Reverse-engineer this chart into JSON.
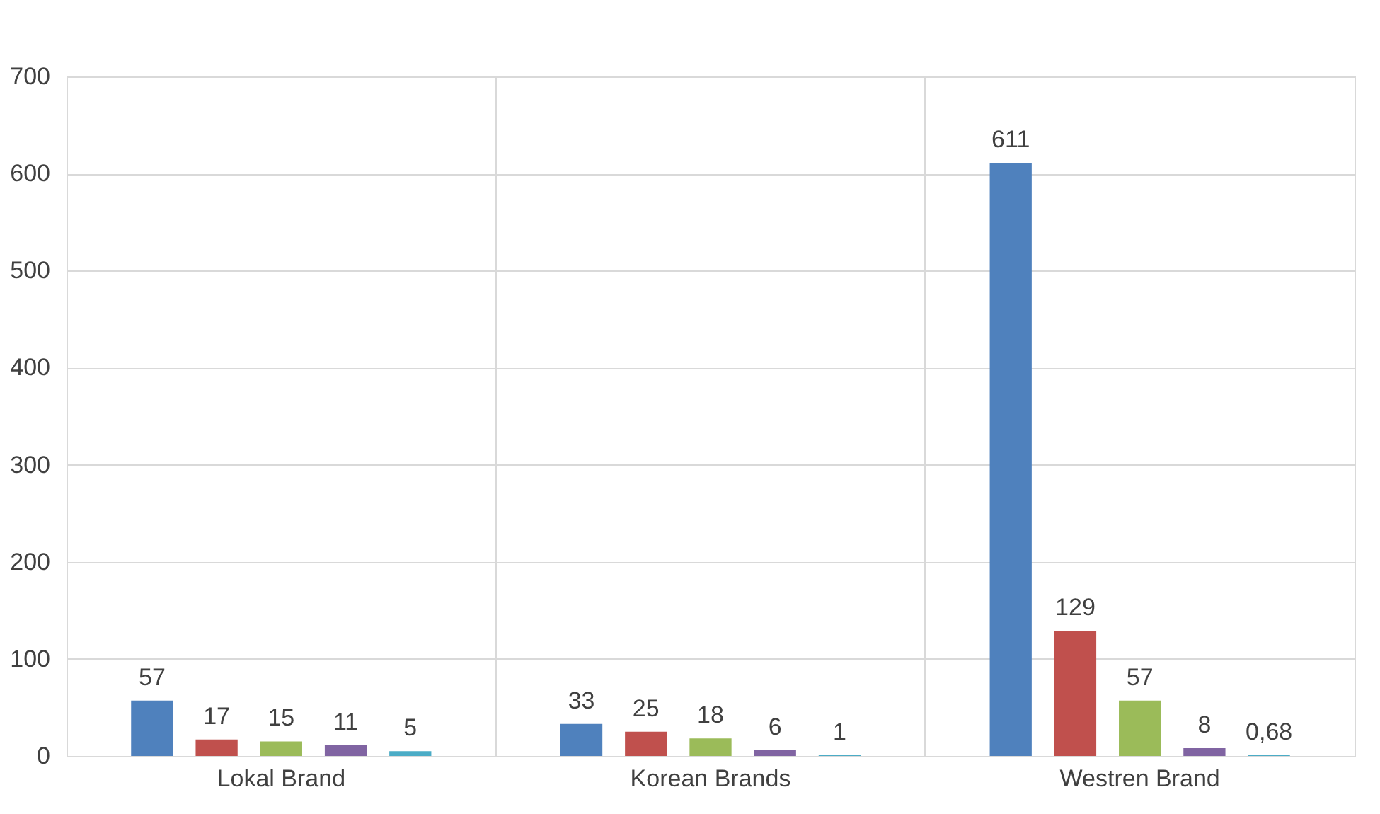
{
  "chart_data": {
    "type": "bar",
    "categories": [
      "Lokal Brand",
      "Korean Brands",
      "Westren Brand"
    ],
    "series": [
      {
        "color": "#4f81bd",
        "values": [
          57,
          33,
          611
        ],
        "value_labels": [
          "57",
          "33",
          "611"
        ]
      },
      {
        "color": "#c0504d",
        "values": [
          17,
          25,
          129
        ],
        "value_labels": [
          "17",
          "25",
          "129"
        ]
      },
      {
        "color": "#9bbb59",
        "values": [
          15,
          18,
          57
        ],
        "value_labels": [
          "15",
          "18",
          "57"
        ]
      },
      {
        "color": "#8064a2",
        "values": [
          11,
          6,
          8
        ],
        "value_labels": [
          "11",
          "6",
          "8"
        ]
      },
      {
        "color": "#4bacc6",
        "values": [
          5,
          1,
          0.68
        ],
        "value_labels": [
          "5",
          "1",
          "0,68"
        ]
      }
    ],
    "ylim": [
      0,
      700
    ],
    "yticks": [
      0,
      100,
      200,
      300,
      400,
      500,
      600,
      700
    ],
    "grid": true
  }
}
